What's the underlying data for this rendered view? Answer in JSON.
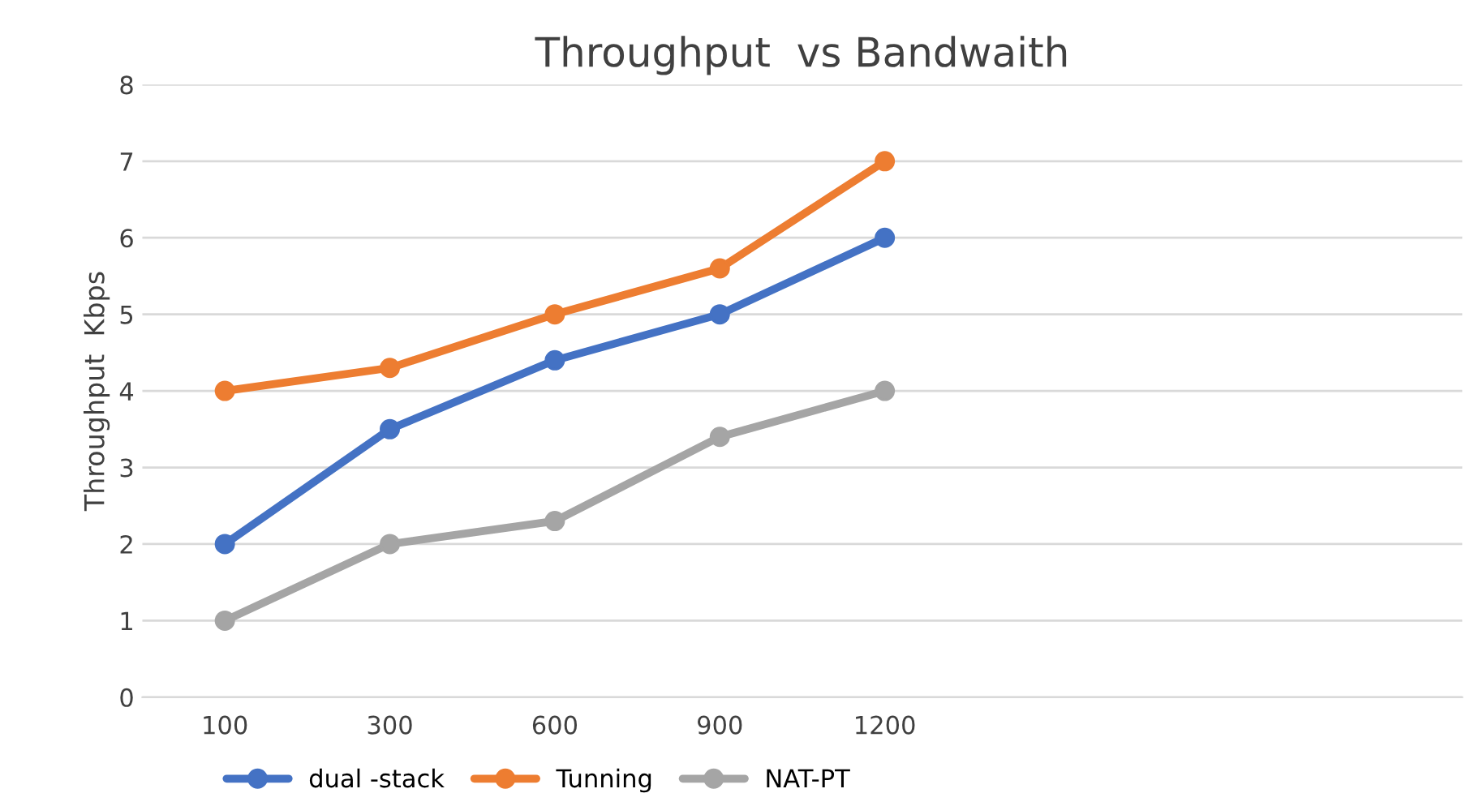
{
  "chart_data": {
    "type": "line",
    "title": "Throughput  vs Bandwaith",
    "ylabel": "Throughput  Kbps",
    "categories": [
      "100",
      "300",
      "600",
      "900",
      "1200",
      null,
      null,
      null
    ],
    "series": [
      {
        "name": "dual -stack",
        "color": "#4472c4",
        "values": [
          2,
          3.5,
          4.4,
          5,
          6,
          null,
          null,
          null
        ]
      },
      {
        "name": "Tunning",
        "color": "#ed7d31",
        "values": [
          4,
          4.3,
          5,
          5.6,
          7,
          null,
          null,
          null
        ]
      },
      {
        "name": "NAT-PT",
        "color": "#a5a5a5",
        "values": [
          1,
          2,
          2.3,
          3.4,
          4,
          null,
          null,
          null
        ]
      }
    ],
    "ylim": [
      0,
      8
    ],
    "yticks": [
      0,
      1,
      2,
      3,
      4,
      5,
      6,
      7,
      8
    ],
    "grid": "y",
    "legend": "bottom",
    "marker": "circle",
    "line_style": "solid"
  }
}
